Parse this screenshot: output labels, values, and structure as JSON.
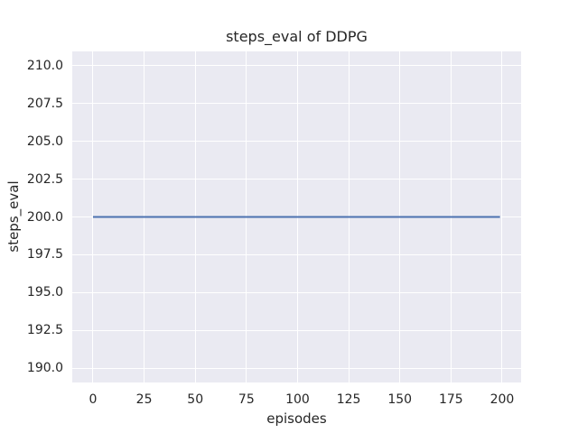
{
  "chart_data": {
    "type": "line",
    "title": "steps_eval of DDPG",
    "xlabel": "episodes",
    "ylabel": "steps_eval",
    "xlim": [
      -10.15,
      209.3
    ],
    "ylim": [
      189.05,
      210.95
    ],
    "grid": true,
    "legend": false,
    "xticks": {
      "values": [
        0,
        25,
        50,
        75,
        100,
        125,
        150,
        175,
        200
      ],
      "labels": [
        "0",
        "25",
        "50",
        "75",
        "100",
        "125",
        "150",
        "175",
        "200"
      ]
    },
    "yticks": {
      "values": [
        210.0,
        207.5,
        205.0,
        202.5,
        200.0,
        197.5,
        195.0,
        192.5,
        190.0
      ],
      "labels": [
        "210.0",
        "207.5",
        "205.0",
        "202.5",
        "200.0",
        "197.5",
        "195.0",
        "192.5",
        "190.0"
      ]
    },
    "series": [
      {
        "name": "DDPG",
        "x": [
          0,
          199
        ],
        "y": [
          200,
          200
        ],
        "color": "#4c72b0",
        "line_width": 2
      }
    ],
    "colors": {
      "figure_bg": "#ffffff",
      "plot_bg": "#eaeaf2",
      "grid": "#ffffff",
      "text": "#262626",
      "line": "#4c72b0"
    }
  }
}
